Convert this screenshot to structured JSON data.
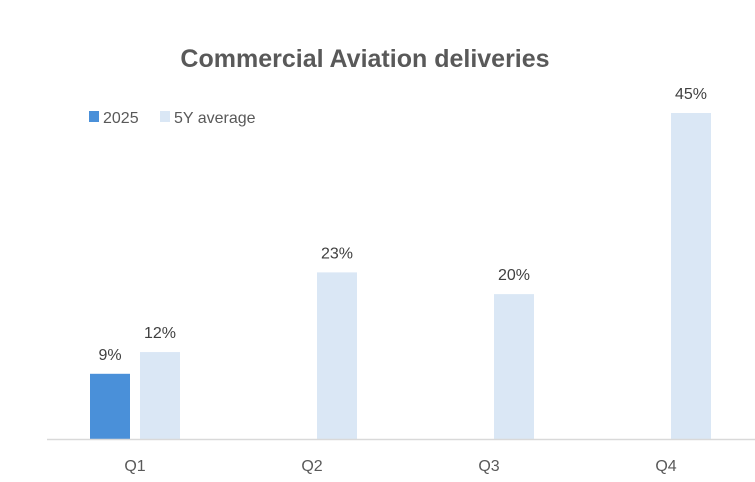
{
  "chart_data": {
    "type": "bar",
    "title": "Commercial Aviation deliveries",
    "xlabel": "",
    "ylabel": "",
    "categories": [
      "Q1",
      "Q2",
      "Q3",
      "Q4"
    ],
    "series": [
      {
        "name": "2025",
        "color": "#4a90d9",
        "values": [
          9,
          null,
          null,
          null
        ],
        "labels": [
          "9%",
          null,
          null,
          null
        ]
      },
      {
        "name": "5Y average",
        "color": "#dae7f5",
        "values": [
          12,
          23,
          20,
          45
        ],
        "labels": [
          "12%",
          "23%",
          "20%",
          "45%"
        ]
      }
    ],
    "ylim": [
      0,
      45
    ],
    "value_format": "percent",
    "grid": false,
    "legend_position": "top-left",
    "axis_color": "#d9d9d9"
  }
}
